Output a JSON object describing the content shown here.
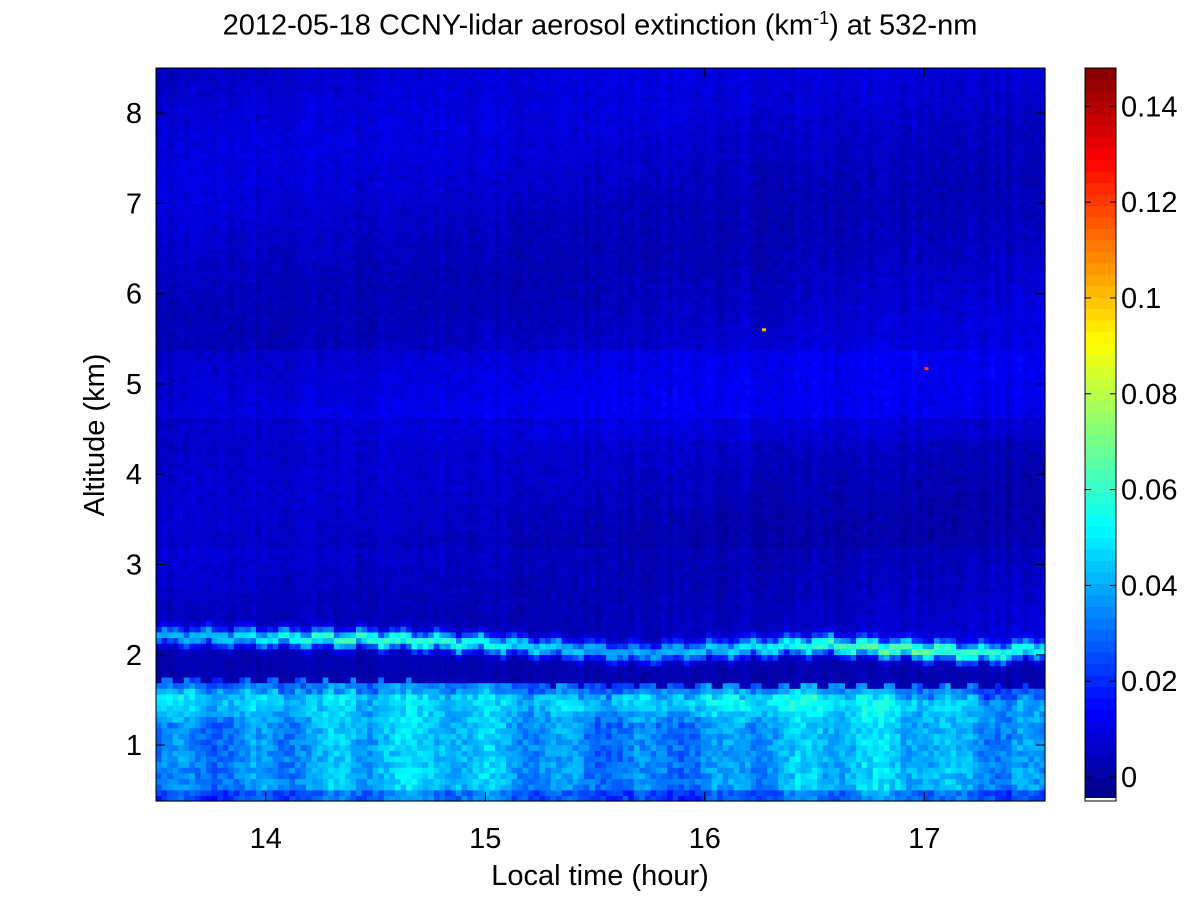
{
  "chart_data": {
    "type": "heatmap",
    "title": {
      "prefix": "2012-05-18 CCNY-lidar aerosol extinction (km",
      "superscript": "-1",
      "suffix": ") at 532-nm"
    },
    "xlabel": "Local time (hour)",
    "ylabel": "Altitude (km)",
    "xlim": [
      13.5,
      17.55
    ],
    "ylim": [
      0.38,
      8.5
    ],
    "x_ticks": [
      14,
      15,
      16,
      17
    ],
    "x_tick_labels": [
      "14",
      "15",
      "16",
      "17"
    ],
    "y_ticks": [
      1,
      2,
      3,
      4,
      5,
      6,
      7,
      8
    ],
    "y_tick_labels": [
      "1",
      "2",
      "3",
      "4",
      "5",
      "6",
      "7",
      "8"
    ],
    "colormap": "jet",
    "colorbar": {
      "clim": [
        -0.005,
        0.148
      ],
      "ticks": [
        0,
        0.02,
        0.04,
        0.06,
        0.08,
        0.1,
        0.12,
        0.14
      ],
      "tick_labels": [
        "0",
        "0.02",
        "0.04",
        "0.06",
        "0.08",
        "0.1",
        "0.12",
        "0.14"
      ]
    },
    "features": {
      "boundary_layer_top_km": 1.72,
      "boundary_layer_base_value": 0.045,
      "elevated_layer_center_km": [
        {
          "time": 13.5,
          "alt": 2.21
        },
        {
          "time": 14.5,
          "alt": 2.18
        },
        {
          "time": 15.0,
          "alt": 2.13
        },
        {
          "time": 15.7,
          "alt": 2.02
        },
        {
          "time": 16.5,
          "alt": 2.12
        },
        {
          "time": 17.3,
          "alt": 2.02
        },
        {
          "time": 17.55,
          "alt": 2.08
        }
      ],
      "elevated_layer_peak_value": 0.07,
      "free_troposphere_value": 0.006,
      "outlier_points": [
        {
          "time": 16.27,
          "alt": 5.6,
          "value": 0.1
        },
        {
          "time": 17.01,
          "alt": 5.17,
          "value": 0.12
        }
      ]
    }
  }
}
